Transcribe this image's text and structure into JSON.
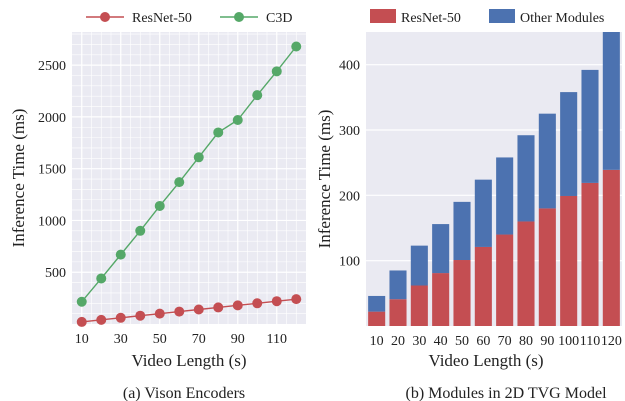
{
  "chart_data": [
    {
      "type": "line",
      "caption": "(a) Vison Encoders",
      "xlabel": "Video Length (s)",
      "ylabel": "Inference Time (ms)",
      "x": [
        10,
        20,
        30,
        40,
        50,
        60,
        70,
        80,
        90,
        100,
        110,
        120
      ],
      "x_ticks": [
        10,
        30,
        50,
        70,
        90,
        110
      ],
      "y_ticks": [
        500,
        1000,
        1500,
        2000,
        2500
      ],
      "xlim": [
        5,
        125
      ],
      "ylim": [
        0,
        2820
      ],
      "grid": true,
      "legend_position": "top",
      "series": [
        {
          "name": "ResNet-50",
          "color": "#c44e52",
          "values": [
            20,
            40,
            60,
            80,
            100,
            120,
            140,
            160,
            180,
            200,
            220,
            240
          ]
        },
        {
          "name": "C3D",
          "color": "#55a868",
          "values": [
            215,
            440,
            670,
            900,
            1140,
            1370,
            1610,
            1850,
            1970,
            2210,
            2440,
            2680
          ]
        }
      ]
    },
    {
      "type": "bar",
      "stacked": true,
      "caption": "(b) Modules in 2D TVG Model",
      "xlabel": "Video Length (s)",
      "ylabel": "Inference Time (ms)",
      "categories": [
        "10",
        "20",
        "30",
        "40",
        "50",
        "60",
        "70",
        "80",
        "90",
        "100",
        "110",
        "120"
      ],
      "y_ticks": [
        100,
        200,
        300,
        400
      ],
      "ylim": [
        0,
        450
      ],
      "grid": true,
      "legend_position": "top",
      "series": [
        {
          "name": "ResNet-50",
          "color": "#c44e52",
          "values": [
            22,
            41,
            62,
            81,
            101,
            121,
            140,
            160,
            180,
            199,
            219,
            239
          ]
        },
        {
          "name": "Other Modules",
          "color": "#4c72b0",
          "values": [
            24,
            44,
            61,
            75,
            89,
            103,
            118,
            132,
            145,
            159,
            173,
            211
          ]
        }
      ]
    }
  ]
}
